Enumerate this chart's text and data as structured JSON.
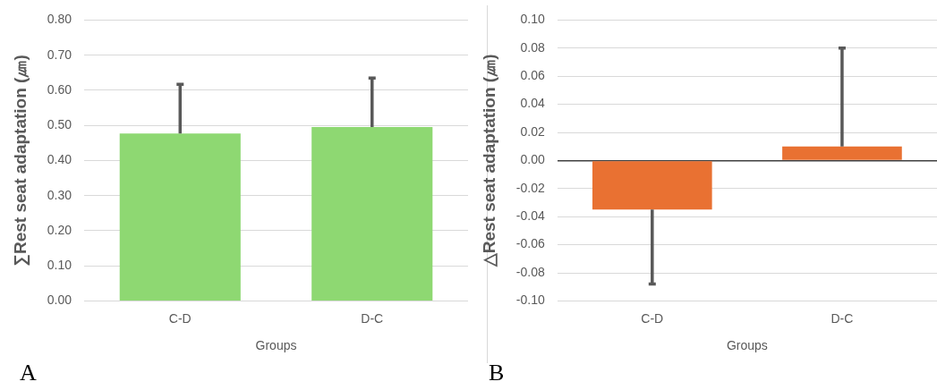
{
  "chart_data": [
    {
      "type": "bar",
      "ylabel": "∑Rest seat adaptation (㎛)",
      "xlabel": "Groups",
      "categories": [
        "C-D",
        "D-C"
      ],
      "values": [
        0.477,
        0.495
      ],
      "errors": [
        [
          0.477,
          0.617
        ],
        [
          0.495,
          0.635
        ]
      ],
      "color": "#8ed872",
      "ylim": [
        0,
        0.8
      ],
      "yticks": [
        {
          "value": 0,
          "label": "0.00"
        },
        {
          "value": 0.1,
          "label": "0.10"
        },
        {
          "value": 0.2,
          "label": "0.20"
        },
        {
          "value": 0.3,
          "label": "0.30"
        },
        {
          "value": 0.4,
          "label": "0.40"
        },
        {
          "value": 0.5,
          "label": "0.50"
        },
        {
          "value": 0.6,
          "label": "0.60"
        },
        {
          "value": 0.7,
          "label": "0.70"
        },
        {
          "value": 0.8,
          "label": "0.80"
        }
      ],
      "grid": "y",
      "annotations": [
        "A"
      ]
    },
    {
      "type": "bar",
      "ylabel": "△Rest seat adaptation (㎛)",
      "xlabel": "Groups",
      "categories": [
        "C-D",
        "D-C"
      ],
      "values": [
        -0.035,
        0.01
      ],
      "errors": [
        [
          -0.088,
          -0.035
        ],
        [
          0.01,
          0.08
        ]
      ],
      "color": "#e97132",
      "ylim": [
        -0.1,
        0.1
      ],
      "yticks": [
        {
          "value": -0.1,
          "label": "-0.10"
        },
        {
          "value": -0.08,
          "label": "-0.08"
        },
        {
          "value": -0.06,
          "label": "-0.06"
        },
        {
          "value": -0.04,
          "label": "-0.04"
        },
        {
          "value": -0.02,
          "label": "-0.02"
        },
        {
          "value": 0,
          "label": "0.00"
        },
        {
          "value": 0.02,
          "label": "0.02"
        },
        {
          "value": 0.04,
          "label": "0.04"
        },
        {
          "value": 0.06,
          "label": "0.06"
        },
        {
          "value": 0.08,
          "label": "0.08"
        },
        {
          "value": 0.1,
          "label": "0.10"
        }
      ],
      "grid": "y",
      "annotations": [
        "B"
      ]
    }
  ]
}
